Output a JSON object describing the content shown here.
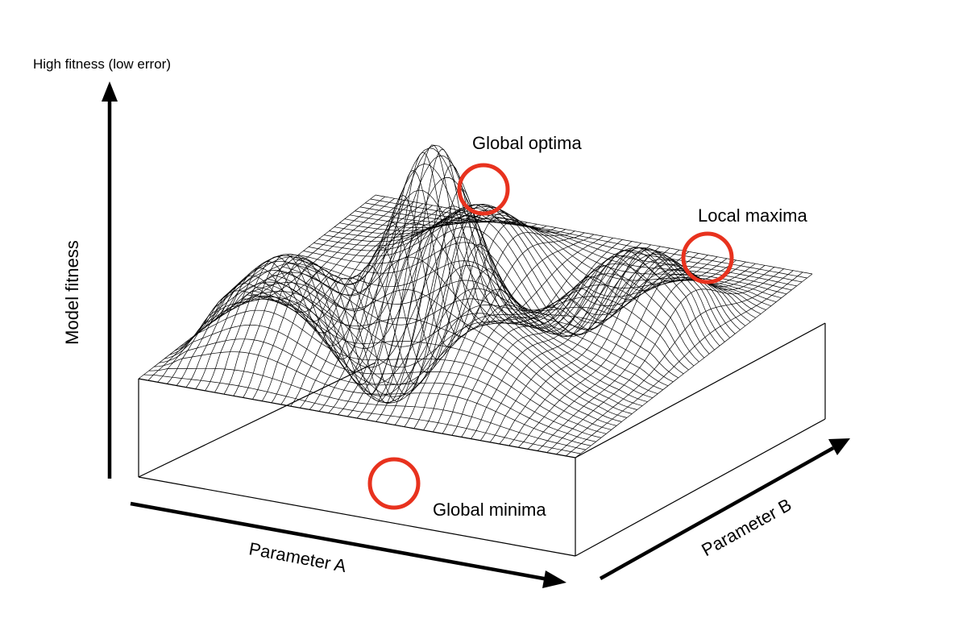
{
  "labels": {
    "high_fitness": "High fitness (low error)",
    "y_axis": "Model fitness",
    "x_axis": "Parameter A",
    "z_axis": "Parameter B",
    "global_optima": "Global optima",
    "local_maxima": "Local maxima",
    "global_minima": "Global minima"
  },
  "colors": {
    "mesh": "#000000",
    "box": "#000000",
    "highlight": "#e8321e",
    "background": "#ffffff"
  },
  "surface": {
    "grid_resolution": 46,
    "bumps": [
      {
        "u": 0.22,
        "v": 0.25,
        "height": 0.5,
        "sigma": 0.12
      },
      {
        "u": 0.5,
        "v": 0.32,
        "height": 1.0,
        "sigma": 0.085
      },
      {
        "u": 0.8,
        "v": 0.6,
        "height": 0.45,
        "sigma": 0.12
      },
      {
        "u": 0.38,
        "v": 0.72,
        "height": 0.38,
        "sigma": 0.11
      },
      {
        "u": 0.68,
        "v": 0.22,
        "height": 0.28,
        "sigma": 0.12
      },
      {
        "u": 0.3,
        "v": 0.5,
        "height": -0.55,
        "sigma": 0.11
      },
      {
        "u": 0.62,
        "v": 0.7,
        "height": -0.32,
        "sigma": 0.1
      }
    ]
  }
}
